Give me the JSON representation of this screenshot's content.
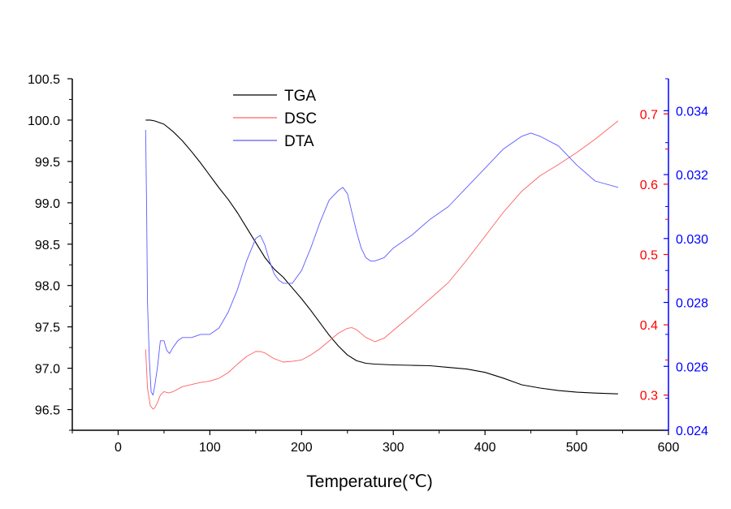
{
  "chart_data": {
    "type": "line",
    "title": "",
    "xlabel": "Temperature(℃)",
    "xlim": [
      -50,
      600
    ],
    "x_ticks": [
      0,
      100,
      200,
      300,
      400,
      500,
      600
    ],
    "x_tick_labels": [
      "0",
      "100",
      "200",
      "300",
      "400",
      "500",
      "600"
    ],
    "axes": {
      "left": {
        "ylim": [
          96.25,
          100.5
        ],
        "ticks": [
          96.5,
          97.0,
          97.5,
          98.0,
          98.5,
          99.0,
          99.5,
          100.0,
          100.5
        ],
        "tick_labels": [
          "96.5",
          "97.0",
          "97.5",
          "98.0",
          "98.5",
          "99.0",
          "99.5",
          "100.0",
          "100.5"
        ],
        "color": "#000000"
      },
      "right_inner": {
        "ylim": [
          0.25,
          0.75
        ],
        "ticks": [
          0.3,
          0.4,
          0.5,
          0.6,
          0.7
        ],
        "tick_labels": [
          "0.3",
          "0.4",
          "0.5",
          "0.6",
          "0.7"
        ],
        "color": "#ff0000"
      },
      "right_outer": {
        "ylim": [
          0.024,
          0.035
        ],
        "ticks": [
          0.024,
          0.026,
          0.028,
          0.03,
          0.032,
          0.034
        ],
        "tick_labels": [
          "0.024",
          "0.026",
          "0.028",
          "0.030",
          "0.032",
          "0.034"
        ],
        "color": "#0000ff"
      }
    },
    "legend": "top-left",
    "series": [
      {
        "name": "TGA",
        "axis": "left",
        "color": "#000000",
        "x": [
          30,
          35,
          40,
          50,
          60,
          70,
          80,
          90,
          100,
          110,
          120,
          130,
          140,
          150,
          160,
          170,
          180,
          190,
          200,
          210,
          220,
          230,
          240,
          250,
          260,
          270,
          280,
          290,
          300,
          320,
          340,
          360,
          380,
          400,
          420,
          440,
          460,
          480,
          500,
          520,
          545
        ],
        "y": [
          100.0,
          100.0,
          99.99,
          99.95,
          99.86,
          99.75,
          99.62,
          99.48,
          99.33,
          99.18,
          99.04,
          98.88,
          98.7,
          98.52,
          98.34,
          98.2,
          98.1,
          97.97,
          97.84,
          97.7,
          97.55,
          97.4,
          97.27,
          97.16,
          97.09,
          97.06,
          97.05,
          97.045,
          97.04,
          97.035,
          97.03,
          97.01,
          96.99,
          96.95,
          96.88,
          96.8,
          96.76,
          96.73,
          96.71,
          96.7,
          96.69
        ]
      },
      {
        "name": "DSC",
        "axis": "right_inner",
        "color": "#ff6060",
        "x": [
          30,
          32,
          35,
          38,
          40,
          43,
          46,
          50,
          55,
          60,
          70,
          80,
          90,
          100,
          110,
          120,
          130,
          140,
          150,
          155,
          160,
          170,
          180,
          190,
          200,
          210,
          220,
          230,
          240,
          250,
          255,
          260,
          270,
          280,
          290,
          300,
          320,
          340,
          360,
          380,
          400,
          420,
          440,
          460,
          480,
          500,
          520,
          545
        ],
        "y": [
          0.365,
          0.31,
          0.285,
          0.28,
          0.282,
          0.29,
          0.3,
          0.305,
          0.303,
          0.305,
          0.312,
          0.315,
          0.318,
          0.32,
          0.324,
          0.332,
          0.344,
          0.355,
          0.362,
          0.362,
          0.36,
          0.352,
          0.347,
          0.348,
          0.35,
          0.357,
          0.366,
          0.377,
          0.388,
          0.395,
          0.396,
          0.393,
          0.382,
          0.376,
          0.381,
          0.392,
          0.414,
          0.437,
          0.46,
          0.492,
          0.526,
          0.56,
          0.59,
          0.612,
          0.628,
          0.645,
          0.664,
          0.69
        ]
      },
      {
        "name": "DTA",
        "axis": "right_outer",
        "color": "#5a5aff",
        "x": [
          30,
          31,
          32,
          34,
          36,
          38,
          40,
          43,
          46,
          50,
          53,
          56,
          60,
          65,
          70,
          80,
          90,
          100,
          110,
          120,
          130,
          140,
          150,
          155,
          160,
          165,
          170,
          175,
          180,
          190,
          200,
          210,
          220,
          230,
          240,
          245,
          250,
          255,
          260,
          265,
          270,
          275,
          280,
          290,
          300,
          320,
          340,
          360,
          380,
          400,
          420,
          440,
          450,
          460,
          480,
          500,
          520,
          545
        ],
        "y": [
          0.0334,
          0.031,
          0.028,
          0.0262,
          0.0252,
          0.0251,
          0.0254,
          0.026,
          0.0268,
          0.0268,
          0.0265,
          0.0264,
          0.0266,
          0.0268,
          0.0269,
          0.0269,
          0.027,
          0.027,
          0.0272,
          0.0277,
          0.0284,
          0.0293,
          0.03,
          0.0301,
          0.0298,
          0.0293,
          0.0289,
          0.0287,
          0.0286,
          0.0286,
          0.029,
          0.0297,
          0.0305,
          0.0312,
          0.0315,
          0.0316,
          0.0314,
          0.0308,
          0.0302,
          0.0297,
          0.0294,
          0.0293,
          0.0293,
          0.0294,
          0.0297,
          0.0301,
          0.0306,
          0.031,
          0.0316,
          0.0322,
          0.0328,
          0.0332,
          0.0333,
          0.0332,
          0.0329,
          0.0323,
          0.0318,
          0.0316
        ]
      }
    ]
  }
}
